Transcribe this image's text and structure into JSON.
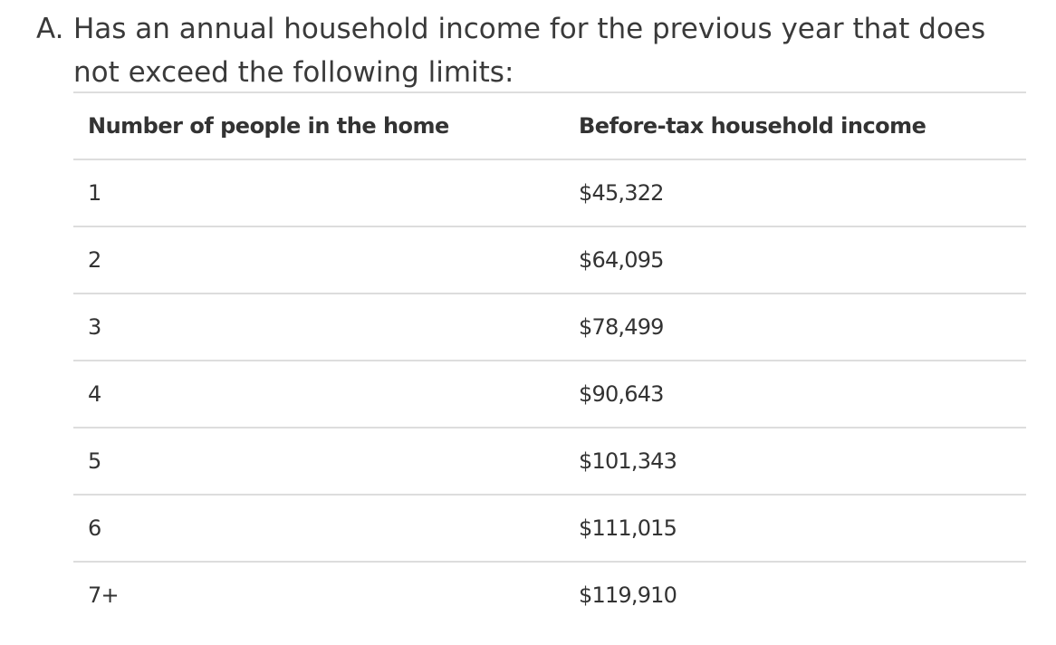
{
  "list_item": {
    "marker": "A.",
    "text": "Has an annual household income for the previous year that does not exceed the following limits:"
  },
  "table": {
    "headers": [
      "Number of people in the home",
      "Before-tax household income"
    ],
    "rows": [
      [
        "1",
        "$45,322"
      ],
      [
        "2",
        "$64,095"
      ],
      [
        "3",
        "$78,499"
      ],
      [
        "4",
        "$90,643"
      ],
      [
        "5",
        "$101,343"
      ],
      [
        "6",
        "$111,015"
      ],
      [
        "7+",
        "$119,910"
      ]
    ]
  }
}
